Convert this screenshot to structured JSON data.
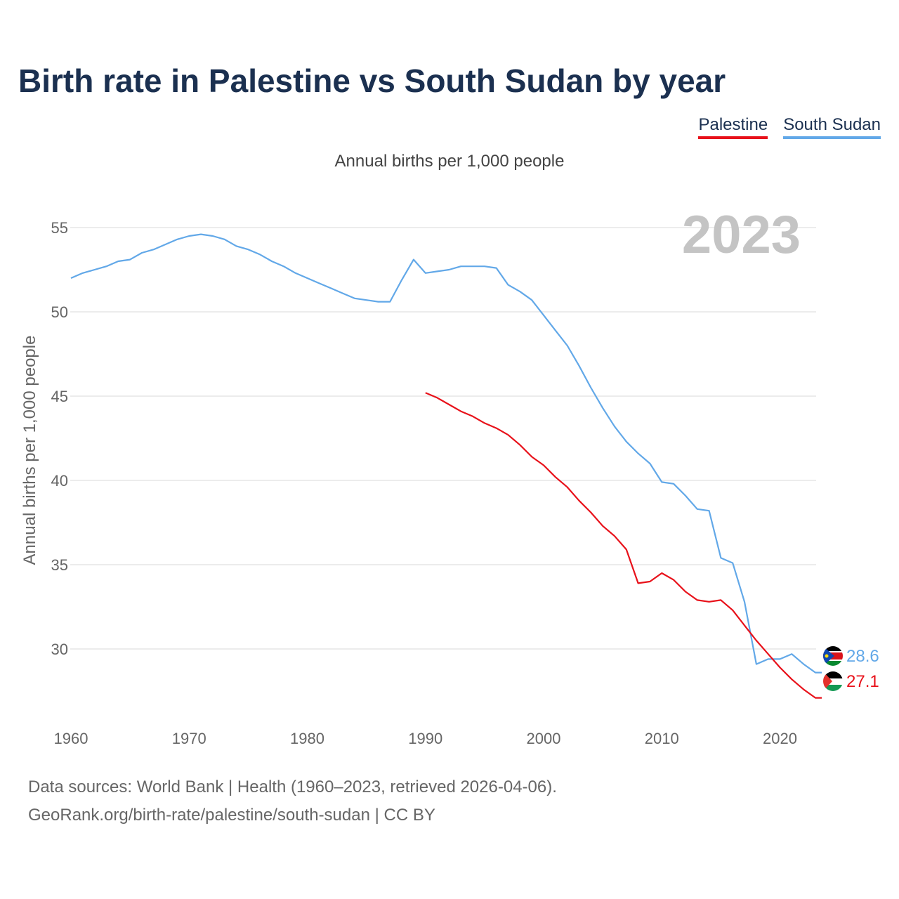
{
  "title": "Birth rate in Palestine vs South Sudan by year",
  "legend": {
    "palestine": "Palestine",
    "south_sudan": "South Sudan"
  },
  "subtitle": "Annual births per 1,000 people",
  "footer": {
    "line1": "Data sources: World Bank | Health (1960–2023, retrieved 2026-04-06).",
    "line2": "GeoRank.org/birth-rate/palestine/south-sudan | CC BY"
  },
  "chart_data": {
    "type": "line",
    "title": "Birth rate in Palestine vs South Sudan by year",
    "xlabel": "",
    "ylabel": "Annual births per 1,000 people",
    "year_label": "2023",
    "xlim": [
      1960,
      2023
    ],
    "ylim": [
      25.5,
      56
    ],
    "x_ticks": [
      1960,
      1970,
      1980,
      1990,
      2000,
      2010,
      2020
    ],
    "y_ticks": [
      30,
      35,
      40,
      45,
      50,
      55
    ],
    "grid": true,
    "colors": {
      "palestine": "#e8111a",
      "south_sudan": "#62a8e8",
      "grid": "#e5e5e5",
      "axis_text": "#666666",
      "year_watermark": "#c4c4c4"
    },
    "series": [
      {
        "key": "south_sudan",
        "name": "South Sudan",
        "end_label": "28.6",
        "x": [
          1960,
          1961,
          1962,
          1963,
          1964,
          1965,
          1966,
          1967,
          1968,
          1969,
          1970,
          1971,
          1972,
          1973,
          1974,
          1975,
          1976,
          1977,
          1978,
          1979,
          1980,
          1981,
          1982,
          1983,
          1984,
          1985,
          1986,
          1987,
          1988,
          1989,
          1990,
          1991,
          1992,
          1993,
          1994,
          1995,
          1996,
          1997,
          1998,
          1999,
          2000,
          2001,
          2002,
          2003,
          2004,
          2005,
          2006,
          2007,
          2008,
          2009,
          2010,
          2011,
          2012,
          2013,
          2014,
          2015,
          2016,
          2017,
          2018,
          2019,
          2020,
          2021,
          2022,
          2023
        ],
        "values": [
          52.0,
          52.3,
          52.5,
          52.7,
          53.0,
          53.1,
          53.5,
          53.7,
          54.0,
          54.3,
          54.5,
          54.6,
          54.5,
          54.3,
          53.9,
          53.7,
          53.4,
          53.0,
          52.7,
          52.3,
          52.0,
          51.7,
          51.4,
          51.1,
          50.8,
          50.7,
          50.6,
          50.6,
          51.9,
          53.1,
          52.3,
          52.4,
          52.5,
          52.7,
          52.7,
          52.7,
          52.6,
          51.6,
          51.2,
          50.7,
          49.8,
          48.9,
          48.0,
          46.8,
          45.5,
          44.3,
          43.2,
          42.3,
          41.6,
          41.0,
          39.9,
          39.8,
          39.1,
          38.3,
          38.2,
          35.4,
          35.1,
          32.8,
          29.1,
          29.4,
          29.4,
          29.7,
          29.1,
          28.6
        ]
      },
      {
        "key": "palestine",
        "name": "Palestine",
        "end_label": "27.1",
        "x": [
          1990,
          1991,
          1992,
          1993,
          1994,
          1995,
          1996,
          1997,
          1998,
          1999,
          2000,
          2001,
          2002,
          2003,
          2004,
          2005,
          2006,
          2007,
          2008,
          2009,
          2010,
          2011,
          2012,
          2013,
          2014,
          2015,
          2016,
          2017,
          2018,
          2019,
          2020,
          2021,
          2022,
          2023
        ],
        "values": [
          45.2,
          44.9,
          44.5,
          44.1,
          43.8,
          43.4,
          43.1,
          42.7,
          42.1,
          41.4,
          40.9,
          40.2,
          39.6,
          38.8,
          38.1,
          37.3,
          36.7,
          35.9,
          33.9,
          34.0,
          34.5,
          34.1,
          33.4,
          32.9,
          32.8,
          32.9,
          32.3,
          31.4,
          30.5,
          29.7,
          28.9,
          28.2,
          27.6,
          27.1
        ]
      }
    ]
  }
}
